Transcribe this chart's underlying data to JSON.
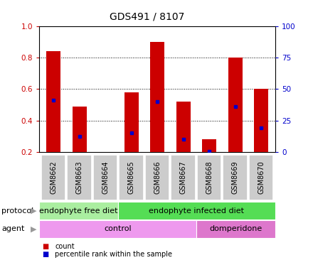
{
  "title": "GDS491 / 8107",
  "samples": [
    "GSM8662",
    "GSM8663",
    "GSM8664",
    "GSM8665",
    "GSM8666",
    "GSM8667",
    "GSM8668",
    "GSM8669",
    "GSM8670"
  ],
  "bar_heights": [
    0.84,
    0.49,
    0.0,
    0.58,
    0.9,
    0.52,
    0.28,
    0.8,
    0.6
  ],
  "blue_y": [
    0.53,
    0.3,
    0.0,
    0.32,
    0.52,
    0.28,
    0.205,
    0.49,
    0.355
  ],
  "ylim_left": [
    0.2,
    1.0
  ],
  "ylim_right": [
    0,
    100
  ],
  "yticks_left": [
    0.2,
    0.4,
    0.6,
    0.8,
    1.0
  ],
  "yticks_right": [
    0,
    25,
    50,
    75,
    100
  ],
  "bar_color": "#CC0000",
  "dot_color": "#0000CC",
  "bar_width": 0.55,
  "protocol_groups": [
    {
      "label": "endophyte free diet",
      "start": 0,
      "end": 3,
      "color": "#AAEEA0"
    },
    {
      "label": "endophyte infected diet",
      "start": 3,
      "end": 9,
      "color": "#55DD55"
    }
  ],
  "agent_groups": [
    {
      "label": "control",
      "start": 0,
      "end": 6,
      "color": "#EE99EE"
    },
    {
      "label": "domperidone",
      "start": 6,
      "end": 9,
      "color": "#DD77CC"
    }
  ],
  "protocol_label": "protocol",
  "agent_label": "agent",
  "legend_count_color": "#CC0000",
  "legend_pct_color": "#0000CC",
  "legend_count_label": "count",
  "legend_pct_label": "percentile rank within the sample",
  "sample_box_color": "#CCCCCC",
  "arrow_color": "#999999"
}
